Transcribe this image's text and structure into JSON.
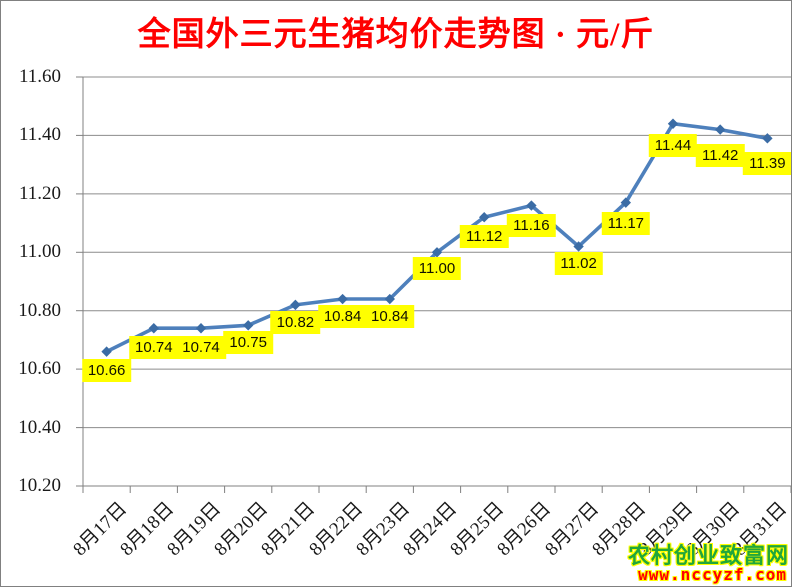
{
  "title": "全国外三元生猪均价走势图 · 元/斤",
  "watermark": {
    "site_name": "农村创业致富网",
    "url": "www.nccyzf.com"
  },
  "colors": {
    "title": "#ff0000",
    "line": "#4e80bc",
    "marker": "#3b6ca5",
    "grid": "#8c8c8c",
    "axis": "#808080",
    "data_label_bg": "#ffff00",
    "data_label_text": "#111100",
    "watermark_site": "#21a63c",
    "watermark_url": "#ff0000",
    "watermark_outline": "#ffff00"
  },
  "chart_data": {
    "type": "line",
    "title": "全国外三元生猪均价走势图 · 元/斤",
    "xlabel": "",
    "ylabel": "",
    "categories": [
      "8月17日",
      "8月18日",
      "8月19日",
      "8月20日",
      "8月21日",
      "8月22日",
      "8月23日",
      "8月24日",
      "8月25日",
      "8月26日",
      "8月27日",
      "8月28日",
      "8月29日",
      "8月30日",
      "8月31日"
    ],
    "series": [
      {
        "name": "全国外三元生猪均价",
        "values": [
          10.66,
          10.74,
          10.74,
          10.75,
          10.82,
          10.84,
          10.84,
          11.0,
          11.12,
          11.16,
          11.02,
          11.17,
          11.44,
          11.42,
          11.39
        ],
        "data_labels": [
          "10.66",
          "10.74",
          "10.74",
          "10.75",
          "10.82",
          "10.84",
          "10.84",
          "11.00",
          "11.12",
          "11.16",
          "11.02",
          "11.17",
          "11.44",
          "11.42",
          "11.39"
        ]
      }
    ],
    "ylim": [
      10.2,
      11.6
    ],
    "ytick_step": 0.2,
    "ytick_labels": [
      "11.60",
      "11.40",
      "11.20",
      "11.00",
      "10.80",
      "10.60",
      "10.40",
      "10.20"
    ],
    "grid": true,
    "gridlines": "horizontal",
    "legend": false,
    "marker_shape": "diamond"
  }
}
